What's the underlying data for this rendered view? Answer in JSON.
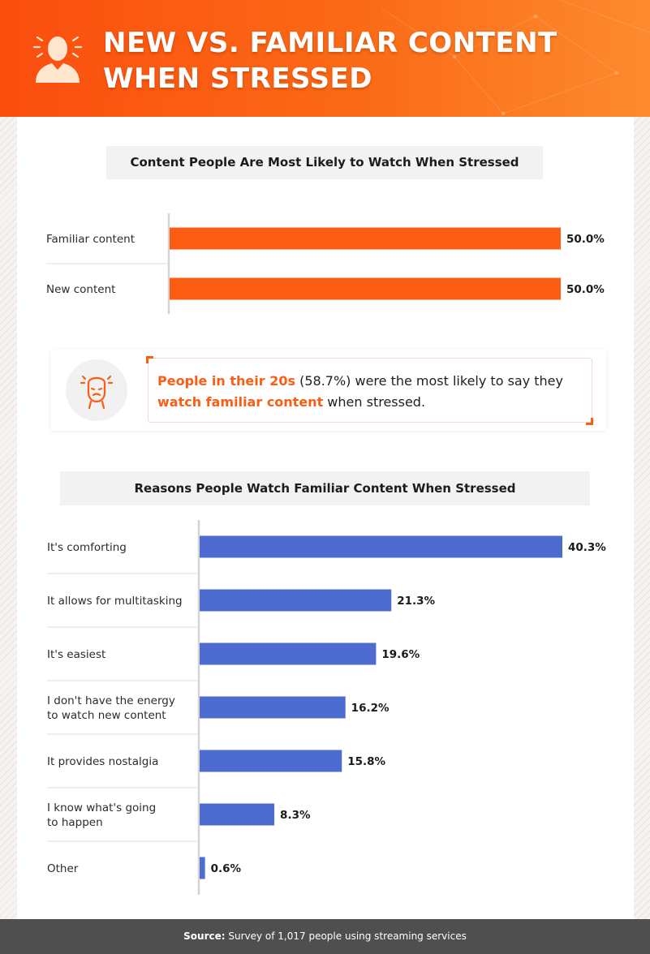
{
  "header": {
    "title_line1": "NEW VS. FAMILIAR CONTENT",
    "title_line2": "WHEN STRESSED",
    "icon": "stressed-person-icon"
  },
  "colors": {
    "orange": "#fb5d14",
    "blue": "#4e6bcf",
    "footer_bg": "#4f4f4f"
  },
  "callout": {
    "icon": "stressed-face-icon",
    "part1": "People in their 20s",
    "part2": " (58.7%) were the most likely to say they ",
    "part3": "watch familiar content",
    "part4": " when stressed."
  },
  "footer": {
    "source_label": "Source:",
    "source_text": " Survey of 1,017 people using streaming services"
  },
  "chart_data": [
    {
      "type": "bar",
      "orientation": "horizontal",
      "title": "Content People Are Most Likely to Watch When Stressed",
      "categories": [
        "Familiar content",
        "New content"
      ],
      "values": [
        50.0,
        50.0
      ],
      "value_labels": [
        "50.0%",
        "50.0%"
      ],
      "unit": "%",
      "color": "#fb5d14",
      "xlim": [
        0,
        50
      ],
      "grid": false
    },
    {
      "type": "bar",
      "orientation": "horizontal",
      "title": "Reasons People Watch Familiar Content When Stressed",
      "categories": [
        "It's comforting",
        "It allows for multitasking",
        "It's easiest",
        "I don't have the energy to watch new content",
        "It provides nostalgia",
        "I know what's going to happen",
        "Other"
      ],
      "category_lines": [
        [
          "It's comforting"
        ],
        [
          "It allows for multitasking"
        ],
        [
          "It's easiest"
        ],
        [
          "I don't have the energy",
          "to watch new content"
        ],
        [
          "It provides nostalgia"
        ],
        [
          "I know what's going",
          "to happen"
        ],
        [
          "Other"
        ]
      ],
      "values": [
        40.3,
        21.3,
        19.6,
        16.2,
        15.8,
        8.3,
        0.6
      ],
      "value_labels": [
        "40.3%",
        "21.3%",
        "19.6%",
        "16.2%",
        "15.8%",
        "8.3%",
        "0.6%"
      ],
      "unit": "%",
      "color": "#4e6bcf",
      "xlim": [
        0,
        40.3
      ],
      "grid": false
    }
  ]
}
